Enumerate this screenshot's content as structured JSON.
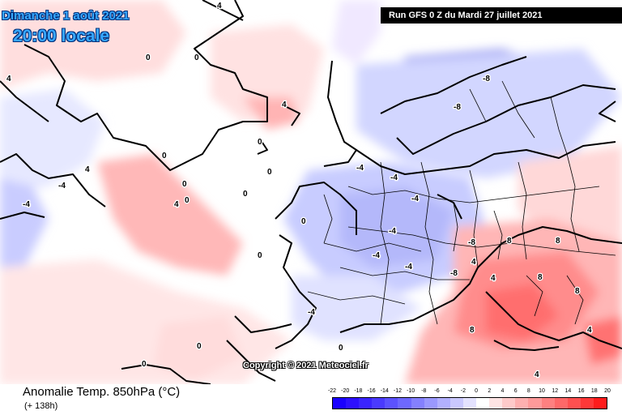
{
  "header": {
    "date": "Dimanche 1 août 2021",
    "time": "20:00 locale",
    "run": "Run GFS 0 Z du Mardi 27 juillet 2021"
  },
  "footer": {
    "copyright": "Copyright © 2021 Meteociel.fr",
    "title": "Anomalie Temp. 850hPa (°C)",
    "lead": "(+ 138h)"
  },
  "legend": {
    "labels": [
      "-22",
      "-20",
      "-18",
      "-16",
      "-14",
      "-12",
      "-10",
      "-8",
      "-6",
      "-4",
      "-2",
      "0",
      "2",
      "4",
      "6",
      "8",
      "10",
      "12",
      "14",
      "16",
      "18",
      "20"
    ],
    "colors": [
      "#1a00ff",
      "#2d10ff",
      "#3a24ff",
      "#4a3aff",
      "#5c52ff",
      "#6e68ff",
      "#8480ff",
      "#9a98ff",
      "#b2b0ff",
      "#cac8ff",
      "#e4e2ff",
      "#ffffff",
      "#ffe4e4",
      "#ffcaca",
      "#ffb0b0",
      "#ff9a9a",
      "#ff8080",
      "#ff6868",
      "#ff5050",
      "#ff3838",
      "#ff1c1c"
    ]
  },
  "map_labels": [
    {
      "text": "4"
    },
    {
      "text": "0"
    },
    {
      "text": "0"
    },
    {
      "text": "4"
    },
    {
      "text": "0"
    },
    {
      "text": "-4"
    },
    {
      "text": "4"
    },
    {
      "text": "0"
    },
    {
      "text": "0"
    },
    {
      "text": "-4"
    },
    {
      "text": "4"
    },
    {
      "text": "0"
    },
    {
      "text": "0"
    },
    {
      "text": "-4"
    },
    {
      "text": "-4"
    },
    {
      "text": "0"
    },
    {
      "text": "-4"
    },
    {
      "text": "-4"
    },
    {
      "text": "-8"
    },
    {
      "text": "-8"
    },
    {
      "text": "-4"
    },
    {
      "text": "4"
    },
    {
      "text": "8"
    },
    {
      "text": "8"
    },
    {
      "text": "8"
    },
    {
      "text": "4"
    },
    {
      "text": "8"
    },
    {
      "text": "8"
    },
    {
      "text": "4"
    },
    {
      "text": "0"
    },
    {
      "text": "0"
    },
    {
      "text": "-4"
    },
    {
      "text": "4"
    },
    {
      "text": "0"
    },
    {
      "text": "0"
    },
    {
      "text": "-8"
    },
    {
      "text": "-8"
    },
    {
      "text": "-4"
    },
    {
      "text": "0"
    },
    {
      "text": "4"
    }
  ]
}
